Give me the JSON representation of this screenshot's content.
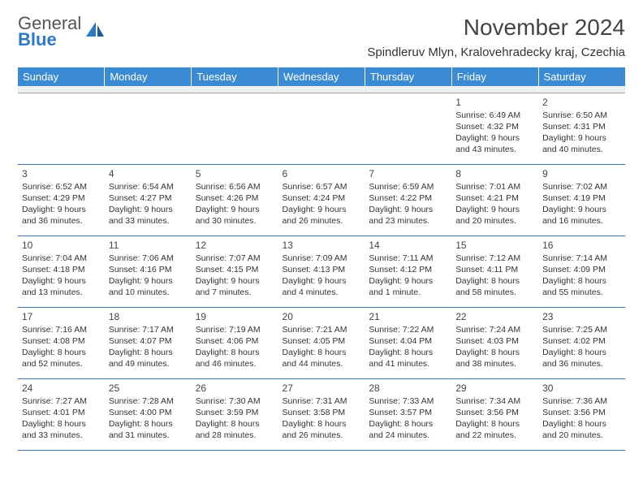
{
  "logo": {
    "general": "General",
    "blue": "Blue"
  },
  "title": "November 2024",
  "location": "Spindleruv Mlyn, Kralovehradecky kraj, Czechia",
  "header_bg": "#3b8bd4",
  "header_fg": "#ffffff",
  "rule_color": "#3b6fa8",
  "spacer_bg": "#eef0f2",
  "logo_accent": "#2f79c2",
  "weekdays": [
    "Sunday",
    "Monday",
    "Tuesday",
    "Wednesday",
    "Thursday",
    "Friday",
    "Saturday"
  ],
  "weeks": [
    [
      null,
      null,
      null,
      null,
      null,
      {
        "n": "1",
        "sr": "Sunrise: 6:49 AM",
        "ss": "Sunset: 4:32 PM",
        "d1": "Daylight: 9 hours",
        "d2": "and 43 minutes."
      },
      {
        "n": "2",
        "sr": "Sunrise: 6:50 AM",
        "ss": "Sunset: 4:31 PM",
        "d1": "Daylight: 9 hours",
        "d2": "and 40 minutes."
      }
    ],
    [
      {
        "n": "3",
        "sr": "Sunrise: 6:52 AM",
        "ss": "Sunset: 4:29 PM",
        "d1": "Daylight: 9 hours",
        "d2": "and 36 minutes."
      },
      {
        "n": "4",
        "sr": "Sunrise: 6:54 AM",
        "ss": "Sunset: 4:27 PM",
        "d1": "Daylight: 9 hours",
        "d2": "and 33 minutes."
      },
      {
        "n": "5",
        "sr": "Sunrise: 6:56 AM",
        "ss": "Sunset: 4:26 PM",
        "d1": "Daylight: 9 hours",
        "d2": "and 30 minutes."
      },
      {
        "n": "6",
        "sr": "Sunrise: 6:57 AM",
        "ss": "Sunset: 4:24 PM",
        "d1": "Daylight: 9 hours",
        "d2": "and 26 minutes."
      },
      {
        "n": "7",
        "sr": "Sunrise: 6:59 AM",
        "ss": "Sunset: 4:22 PM",
        "d1": "Daylight: 9 hours",
        "d2": "and 23 minutes."
      },
      {
        "n": "8",
        "sr": "Sunrise: 7:01 AM",
        "ss": "Sunset: 4:21 PM",
        "d1": "Daylight: 9 hours",
        "d2": "and 20 minutes."
      },
      {
        "n": "9",
        "sr": "Sunrise: 7:02 AM",
        "ss": "Sunset: 4:19 PM",
        "d1": "Daylight: 9 hours",
        "d2": "and 16 minutes."
      }
    ],
    [
      {
        "n": "10",
        "sr": "Sunrise: 7:04 AM",
        "ss": "Sunset: 4:18 PM",
        "d1": "Daylight: 9 hours",
        "d2": "and 13 minutes."
      },
      {
        "n": "11",
        "sr": "Sunrise: 7:06 AM",
        "ss": "Sunset: 4:16 PM",
        "d1": "Daylight: 9 hours",
        "d2": "and 10 minutes."
      },
      {
        "n": "12",
        "sr": "Sunrise: 7:07 AM",
        "ss": "Sunset: 4:15 PM",
        "d1": "Daylight: 9 hours",
        "d2": "and 7 minutes."
      },
      {
        "n": "13",
        "sr": "Sunrise: 7:09 AM",
        "ss": "Sunset: 4:13 PM",
        "d1": "Daylight: 9 hours",
        "d2": "and 4 minutes."
      },
      {
        "n": "14",
        "sr": "Sunrise: 7:11 AM",
        "ss": "Sunset: 4:12 PM",
        "d1": "Daylight: 9 hours",
        "d2": "and 1 minute."
      },
      {
        "n": "15",
        "sr": "Sunrise: 7:12 AM",
        "ss": "Sunset: 4:11 PM",
        "d1": "Daylight: 8 hours",
        "d2": "and 58 minutes."
      },
      {
        "n": "16",
        "sr": "Sunrise: 7:14 AM",
        "ss": "Sunset: 4:09 PM",
        "d1": "Daylight: 8 hours",
        "d2": "and 55 minutes."
      }
    ],
    [
      {
        "n": "17",
        "sr": "Sunrise: 7:16 AM",
        "ss": "Sunset: 4:08 PM",
        "d1": "Daylight: 8 hours",
        "d2": "and 52 minutes."
      },
      {
        "n": "18",
        "sr": "Sunrise: 7:17 AM",
        "ss": "Sunset: 4:07 PM",
        "d1": "Daylight: 8 hours",
        "d2": "and 49 minutes."
      },
      {
        "n": "19",
        "sr": "Sunrise: 7:19 AM",
        "ss": "Sunset: 4:06 PM",
        "d1": "Daylight: 8 hours",
        "d2": "and 46 minutes."
      },
      {
        "n": "20",
        "sr": "Sunrise: 7:21 AM",
        "ss": "Sunset: 4:05 PM",
        "d1": "Daylight: 8 hours",
        "d2": "and 44 minutes."
      },
      {
        "n": "21",
        "sr": "Sunrise: 7:22 AM",
        "ss": "Sunset: 4:04 PM",
        "d1": "Daylight: 8 hours",
        "d2": "and 41 minutes."
      },
      {
        "n": "22",
        "sr": "Sunrise: 7:24 AM",
        "ss": "Sunset: 4:03 PM",
        "d1": "Daylight: 8 hours",
        "d2": "and 38 minutes."
      },
      {
        "n": "23",
        "sr": "Sunrise: 7:25 AM",
        "ss": "Sunset: 4:02 PM",
        "d1": "Daylight: 8 hours",
        "d2": "and 36 minutes."
      }
    ],
    [
      {
        "n": "24",
        "sr": "Sunrise: 7:27 AM",
        "ss": "Sunset: 4:01 PM",
        "d1": "Daylight: 8 hours",
        "d2": "and 33 minutes."
      },
      {
        "n": "25",
        "sr": "Sunrise: 7:28 AM",
        "ss": "Sunset: 4:00 PM",
        "d1": "Daylight: 8 hours",
        "d2": "and 31 minutes."
      },
      {
        "n": "26",
        "sr": "Sunrise: 7:30 AM",
        "ss": "Sunset: 3:59 PM",
        "d1": "Daylight: 8 hours",
        "d2": "and 28 minutes."
      },
      {
        "n": "27",
        "sr": "Sunrise: 7:31 AM",
        "ss": "Sunset: 3:58 PM",
        "d1": "Daylight: 8 hours",
        "d2": "and 26 minutes."
      },
      {
        "n": "28",
        "sr": "Sunrise: 7:33 AM",
        "ss": "Sunset: 3:57 PM",
        "d1": "Daylight: 8 hours",
        "d2": "and 24 minutes."
      },
      {
        "n": "29",
        "sr": "Sunrise: 7:34 AM",
        "ss": "Sunset: 3:56 PM",
        "d1": "Daylight: 8 hours",
        "d2": "and 22 minutes."
      },
      {
        "n": "30",
        "sr": "Sunrise: 7:36 AM",
        "ss": "Sunset: 3:56 PM",
        "d1": "Daylight: 8 hours",
        "d2": "and 20 minutes."
      }
    ]
  ]
}
